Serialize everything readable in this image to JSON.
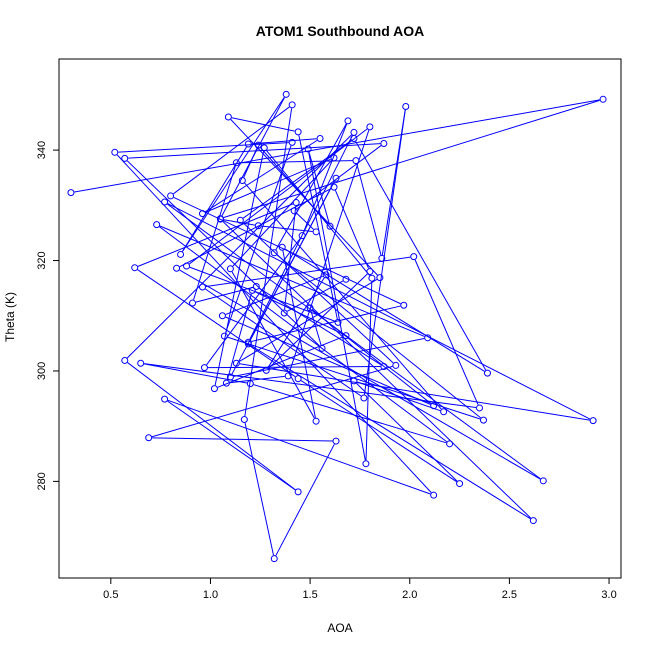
{
  "chart_data": {
    "type": "line",
    "title": "ATOM1 Southbound AOA",
    "xlabel": "AOA",
    "ylabel": "Theta (K)",
    "xlim": [
      0.24,
      3.06
    ],
    "ylim": [
      262.5,
      356.5
    ],
    "xticks": [
      0.5,
      1.0,
      1.5,
      2.0,
      2.5,
      3.0
    ],
    "xtick_labels": [
      "0.5",
      "1.0",
      "1.5",
      "2.0",
      "2.5",
      "3.0"
    ],
    "yticks": [
      280,
      300,
      320,
      340
    ],
    "ytick_labels": [
      "280",
      "300",
      "320",
      "340"
    ],
    "grid": false,
    "legend": "none",
    "series": [
      {
        "color": "#0000ff",
        "marker": "open-circle",
        "points": [
          [
            0.3,
            332.3
          ],
          [
            2.97,
            349.2
          ],
          [
            1.05,
            327.6
          ],
          [
            1.38,
            350.1
          ],
          [
            0.85,
            321.1
          ],
          [
            1.19,
            341.1
          ],
          [
            1.55,
            342.1
          ],
          [
            0.96,
            328.5
          ],
          [
            1.62,
            338.6
          ],
          [
            1.1,
            318.5
          ],
          [
            1.53,
            290.9
          ],
          [
            1.36,
            322.4
          ],
          [
            2.39,
            299.6
          ],
          [
            1.72,
            342.1
          ],
          [
            1.15,
            327.3
          ],
          [
            1.93,
            301.0
          ],
          [
            0.69,
            287.9
          ],
          [
            1.63,
            287.3
          ],
          [
            1.32,
            266.0
          ],
          [
            1.17,
            291.2
          ],
          [
            1.41,
            348.2
          ],
          [
            0.8,
            331.7
          ],
          [
            1.97,
            311.9
          ],
          [
            1.19,
            305.2
          ],
          [
            1.72,
            343.2
          ],
          [
            0.57,
            301.9
          ],
          [
            1.44,
            278.1
          ],
          [
            0.77,
            294.9
          ],
          [
            2.12,
            277.5
          ],
          [
            0.52,
            339.6
          ],
          [
            1.41,
            341.4
          ],
          [
            1.07,
            306.3
          ],
          [
            2.37,
            291.1
          ],
          [
            1.32,
            321.4
          ],
          [
            1.69,
            345.3
          ],
          [
            1.46,
            324.5
          ],
          [
            0.97,
            300.6
          ],
          [
            1.87,
            300.8
          ],
          [
            1.23,
            315.3
          ],
          [
            0.91,
            312.3
          ],
          [
            1.13,
            337.7
          ],
          [
            1.73,
            338.1
          ],
          [
            1.86,
            320.4
          ],
          [
            1.98,
            347.9
          ],
          [
            1.77,
            295.1
          ],
          [
            0.96,
            315.2
          ],
          [
            2.02,
            320.7
          ],
          [
            2.35,
            293.3
          ],
          [
            0.65,
            301.4
          ],
          [
            1.2,
            297.7
          ],
          [
            2.2,
            286.8
          ],
          [
            0.73,
            326.5
          ],
          [
            2.09,
            306.0
          ],
          [
            1.1,
            298.9
          ],
          [
            1.63,
            334.9
          ],
          [
            1.19,
            304.9
          ],
          [
            2.62,
            272.9
          ],
          [
            1.05,
            327.5
          ],
          [
            1.24,
            326.3
          ],
          [
            1.53,
            325.2
          ],
          [
            1.42,
            329.0
          ],
          [
            1.87,
            341.2
          ],
          [
            0.57,
            338.5
          ],
          [
            1.56,
            304.1
          ],
          [
            1.5,
            311.4
          ],
          [
            2.12,
            293.7
          ],
          [
            1.06,
            310.0
          ],
          [
            1.58,
            317.4
          ],
          [
            1.28,
            300.1
          ],
          [
            1.8,
            318.0
          ],
          [
            1.62,
            333.3
          ],
          [
            0.83,
            318.6
          ],
          [
            2.67,
            280.1
          ],
          [
            0.77,
            330.6
          ],
          [
            2.92,
            291.0
          ],
          [
            1.13,
            301.4
          ],
          [
            1.85,
            316.9
          ],
          [
            1.09,
            346.0
          ],
          [
            1.44,
            343.3
          ],
          [
            1.64,
            308.8
          ],
          [
            0.88,
            319.0
          ],
          [
            1.8,
            344.2
          ],
          [
            1.39,
            299.1
          ],
          [
            1.08,
            297.8
          ],
          [
            1.21,
            314.6
          ],
          [
            1.68,
            306.4
          ],
          [
            1.02,
            296.8
          ],
          [
            1.27,
            340.4
          ],
          [
            1.81,
            316.8
          ],
          [
            1.78,
            283.2
          ],
          [
            1.49,
            340.2
          ],
          [
            1.6,
            326.2
          ],
          [
            1.24,
            340.9
          ],
          [
            1.16,
            334.5
          ],
          [
            2.17,
            292.6
          ],
          [
            1.72,
            298.2
          ],
          [
            2.25,
            279.6
          ],
          [
            1.44,
            298.6
          ],
          [
            0.62,
            318.7
          ],
          [
            1.43,
            330.5
          ],
          [
            1.37,
            310.5
          ],
          [
            1.68,
            316.6
          ]
        ]
      }
    ]
  }
}
